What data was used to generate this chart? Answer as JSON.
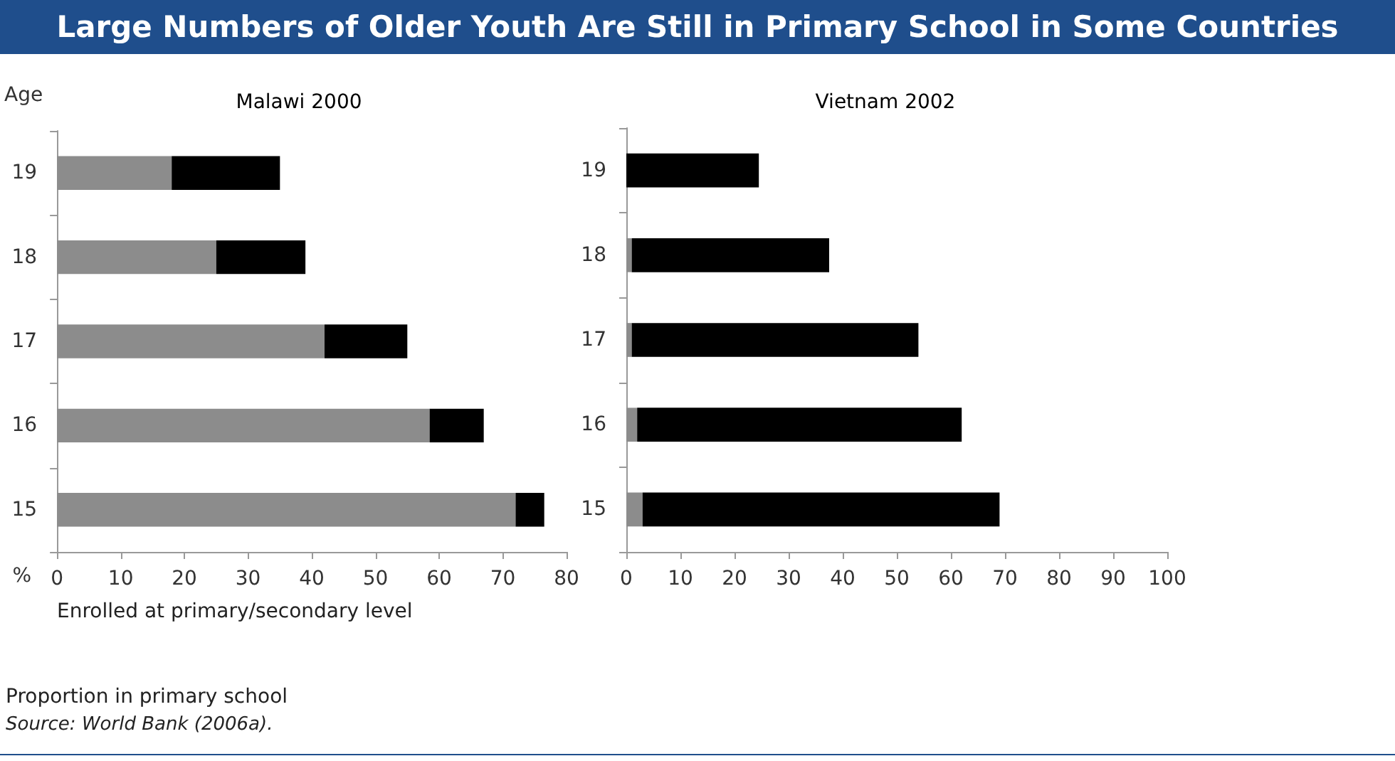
{
  "chart_data": [
    {
      "type": "bar",
      "orientation": "horizontal",
      "stacked": true,
      "title": "Large Numbers of Older Youth Are Still in Primary School in Some Countries",
      "subtitle": "Malawi 2000",
      "ylabel": "Age",
      "xlabel": "%",
      "categories": [
        "19",
        "18",
        "17",
        "16",
        "15"
      ],
      "series": [
        {
          "color": "#8c8c8c",
          "values": [
            18,
            25,
            42,
            58.5,
            72
          ]
        },
        {
          "color": "#000000",
          "values": [
            17,
            14,
            13,
            8.5,
            4.5
          ]
        }
      ],
      "xlim": [
        0,
        80
      ],
      "xticks": [
        0,
        10,
        20,
        30,
        40,
        50,
        60,
        70,
        80
      ],
      "grid": false,
      "annotations": [
        "Enrolled at primary/secondary level",
        "Proportion in primary school",
        "Source: World Bank (2006a)."
      ]
    },
    {
      "type": "bar",
      "orientation": "horizontal",
      "stacked": true,
      "title": "Vietnam 2002",
      "categories": [
        "19",
        "18",
        "17",
        "16",
        "15"
      ],
      "series": [
        {
          "color": "#8c8c8c",
          "values": [
            0,
            1,
            1,
            2,
            3
          ]
        },
        {
          "color": "#000000",
          "values": [
            24.5,
            36.5,
            53,
            60,
            66
          ]
        }
      ],
      "xlim": [
        0,
        100
      ],
      "xticks": [
        0,
        10,
        20,
        30,
        40,
        50,
        60,
        70,
        80,
        90,
        100
      ],
      "grid": false
    }
  ]
}
